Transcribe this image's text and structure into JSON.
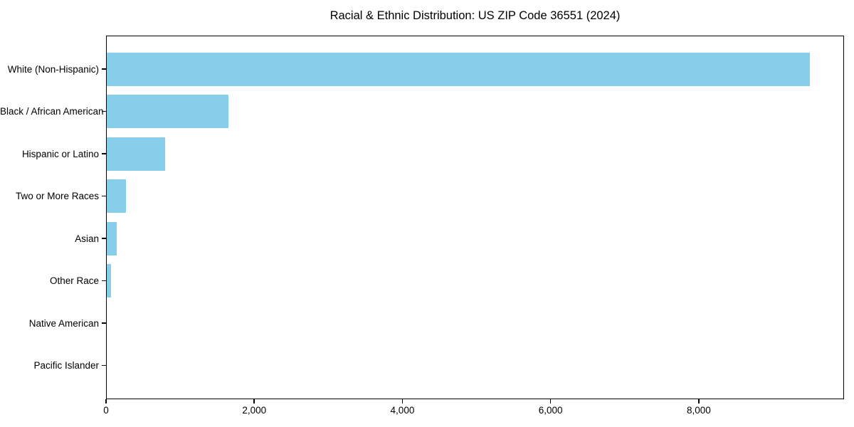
{
  "title": "Racial & Ethnic Distribution: US ZIP Code 36551 (2024)",
  "chart_data": {
    "type": "bar",
    "orientation": "horizontal",
    "title": "Racial & Ethnic Distribution: US ZIP Code 36551 (2024)",
    "categories": [
      "White (Non-Hispanic)",
      "Black / African American",
      "Hispanic or Latino",
      "Two or More Races",
      "Asian",
      "Other Race",
      "Native American",
      "Pacific Islander"
    ],
    "values": [
      9500,
      1650,
      800,
      265,
      145,
      65,
      0,
      0
    ],
    "xlabel": "",
    "ylabel": "",
    "xlim": [
      0,
      9960
    ],
    "xticks": [
      0,
      2000,
      4000,
      6000,
      8000
    ],
    "xtick_labels": [
      "0",
      "2,000",
      "4,000",
      "6,000",
      "8,000"
    ],
    "grid": false,
    "legend": false,
    "bar_color": "#87CEEB",
    "axis_color": "#000000",
    "text_color": "#000000",
    "background_color": "#FFFFFF"
  }
}
